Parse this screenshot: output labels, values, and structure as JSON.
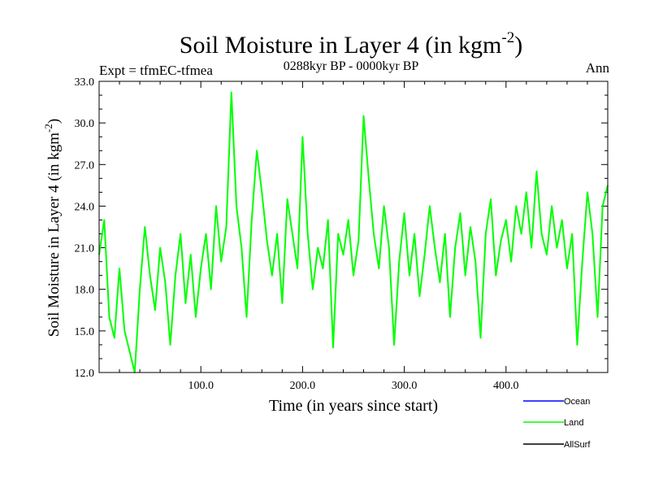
{
  "chart_data": {
    "type": "line",
    "title": "Soil Moisture in Layer 4 (in kgm",
    "title_sup": "-2",
    "title_close": ")",
    "subtitle_left": "Expt = tfmEC-tfmea",
    "subtitle_center": "0288kyr BP - 0000kyr BP",
    "subtitle_right": "Ann",
    "xlabel": "Time (in years since start)",
    "ylabel": "Soil Moisture in Layer 4 (in kgm",
    "ylabel_sup": "-2",
    "ylabel_close": ")",
    "xlim": [
      0,
      500
    ],
    "ylim": [
      12.0,
      33.0
    ],
    "x_ticks": [
      100,
      200,
      300,
      400
    ],
    "x_tick_labels": [
      "100.0",
      "200.0",
      "300.0",
      "400.0"
    ],
    "y_ticks": [
      12,
      15,
      18,
      21,
      24,
      27,
      30,
      33
    ],
    "y_tick_labels": [
      "12.0",
      "15.0",
      "18.0",
      "21.0",
      "24.0",
      "27.0",
      "30.0",
      "33.0"
    ],
    "grid": false,
    "legend_position": "bottom-right",
    "legend": [
      {
        "name": "Ocean",
        "color": "#0000ff"
      },
      {
        "name": "Land",
        "color": "#00ff00"
      },
      {
        "name": "AllSurf",
        "color": "#000000"
      }
    ],
    "series": [
      {
        "name": "Land",
        "color": "#00ff00",
        "x": [
          0,
          5,
          10,
          15,
          20,
          25,
          30,
          35,
          40,
          45,
          50,
          55,
          60,
          65,
          70,
          75,
          80,
          85,
          90,
          95,
          100,
          105,
          110,
          115,
          120,
          125,
          130,
          135,
          140,
          145,
          150,
          155,
          160,
          165,
          170,
          175,
          180,
          185,
          190,
          195,
          200,
          205,
          210,
          215,
          220,
          225,
          230,
          235,
          240,
          245,
          250,
          255,
          260,
          265,
          270,
          275,
          280,
          285,
          290,
          295,
          300,
          305,
          310,
          315,
          320,
          325,
          330,
          335,
          340,
          345,
          350,
          355,
          360,
          365,
          370,
          375,
          380,
          385,
          390,
          395,
          400,
          405,
          410,
          415,
          420,
          425,
          430,
          435,
          440,
          445,
          450,
          455,
          460,
          465,
          470,
          475,
          480,
          485,
          490,
          495,
          500
        ],
        "values": [
          20.5,
          23.0,
          16.0,
          14.5,
          19.5,
          15.0,
          13.5,
          12.0,
          18.0,
          22.5,
          19.0,
          16.5,
          21.0,
          18.5,
          14.0,
          19.0,
          22.0,
          17.0,
          20.5,
          16.0,
          19.5,
          22.0,
          18.0,
          24.0,
          20.0,
          22.5,
          32.2,
          24.0,
          21.0,
          16.0,
          23.0,
          28.0,
          25.0,
          21.5,
          19.0,
          22.0,
          17.0,
          24.5,
          22.0,
          19.5,
          29.0,
          22.0,
          18.0,
          21.0,
          19.5,
          23.0,
          13.8,
          22.0,
          20.5,
          23.0,
          19.0,
          21.5,
          30.5,
          26.0,
          22.0,
          19.5,
          24.0,
          21.0,
          14.0,
          20.0,
          23.5,
          19.0,
          22.0,
          17.5,
          20.5,
          24.0,
          21.0,
          18.5,
          22.0,
          16.0,
          21.0,
          23.5,
          19.0,
          22.5,
          20.0,
          14.5,
          22.0,
          24.5,
          19.0,
          21.5,
          23.0,
          20.0,
          24.0,
          22.0,
          25.0,
          21.0,
          26.5,
          22.0,
          20.5,
          24.0,
          21.0,
          23.0,
          19.5,
          22.0,
          14.0,
          20.0,
          25.0,
          22.0,
          16.0,
          24.0,
          25.5
        ]
      }
    ]
  }
}
